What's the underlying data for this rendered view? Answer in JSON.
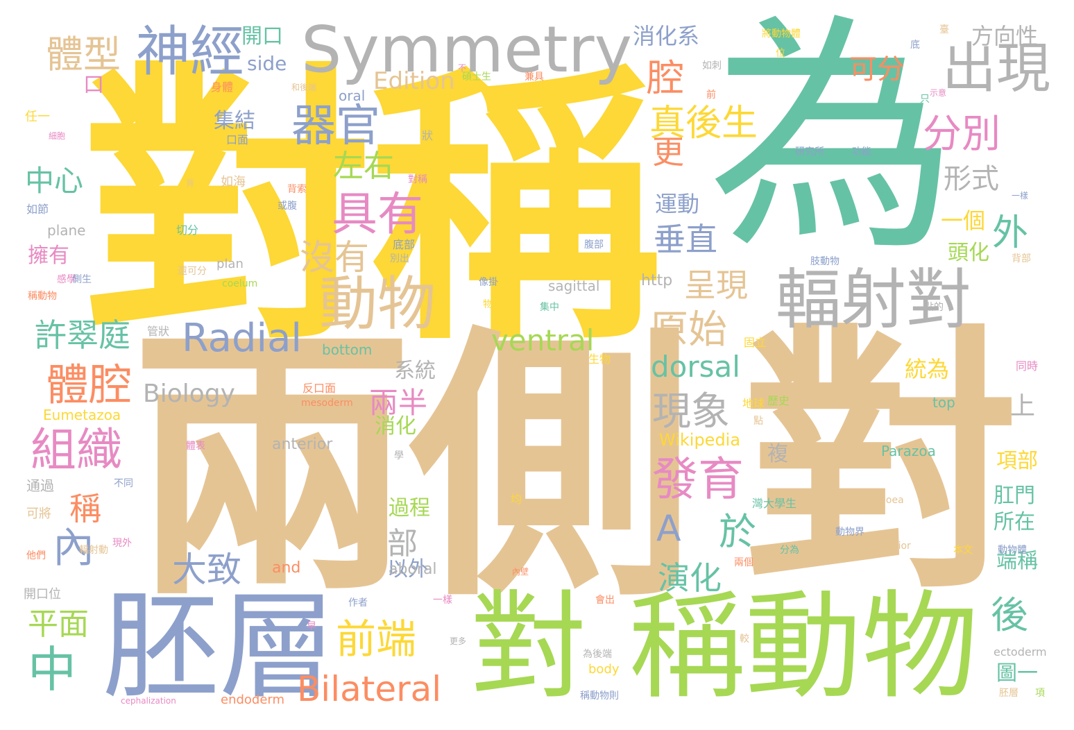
{
  "words": [
    {
      "id": "w-dui-cheng",
      "text": "對稱",
      "color": "#fdd836"
    },
    {
      "id": "w-wei",
      "text": "為",
      "color": "#66c2a5"
    },
    {
      "id": "w-liang-ce",
      "text": "兩側",
      "color": "#e5c494"
    },
    {
      "id": "w-dui-big",
      "text": "對",
      "color": "#e5c494"
    },
    {
      "id": "w-pei-ceng",
      "text": "胚層",
      "color": "#8da0cb"
    },
    {
      "id": "w-dui-green",
      "text": "對",
      "color": "#a6d854"
    },
    {
      "id": "w-cheng-dongwu",
      "text": "稱動物",
      "color": "#a6d854"
    },
    {
      "id": "w-symmetry",
      "text": "Symmetry",
      "color": "#b3b3b3"
    },
    {
      "id": "w-shen-jing",
      "text": "神經",
      "color": "#8da0cb"
    },
    {
      "id": "w-chu-xian",
      "text": "出現",
      "color": "#b3b3b3"
    },
    {
      "id": "w-fu-she-dui",
      "text": "輻射對",
      "color": "#b3b3b3"
    },
    {
      "id": "w-dong-wu",
      "text": "動物",
      "color": "#e5c494"
    },
    {
      "id": "w-ju-you",
      "text": "具有",
      "color": "#e78ac3"
    },
    {
      "id": "w-qi-guan",
      "text": "器官",
      "color": "#8da0cb"
    },
    {
      "id": "w-radial",
      "text": "Radial",
      "color": "#8da0cb"
    },
    {
      "id": "w-ventral",
      "text": "ventral",
      "color": "#a6d854"
    },
    {
      "id": "w-dorsal",
      "text": "dorsal",
      "color": "#66c2a5"
    },
    {
      "id": "w-bilateral",
      "text": "Bilateral",
      "color": "#fc8d62"
    },
    {
      "id": "w-fa-yu",
      "text": "發育",
      "color": "#e78ac3"
    },
    {
      "id": "w-zu-zhi",
      "text": "組織",
      "color": "#e78ac3"
    },
    {
      "id": "w-ti-qiang",
      "text": "體腔",
      "color": "#fc8d62"
    },
    {
      "id": "w-qian-duan",
      "text": "前端",
      "color": "#fdd836"
    },
    {
      "id": "w-zhong",
      "text": "中",
      "color": "#66c2a5"
    },
    {
      "id": "w-nei",
      "text": "內",
      "color": "#8da0cb"
    },
    {
      "id": "w-ti-xing",
      "text": "體型",
      "color": "#e5c494"
    },
    {
      "id": "w-xian-xiang",
      "text": "現象",
      "color": "#b3b3b3"
    },
    {
      "id": "w-yuan-shi",
      "text": "原始",
      "color": "#e5c494"
    },
    {
      "id": "w-fen-bie",
      "text": "分別",
      "color": "#e78ac3"
    },
    {
      "id": "w-qiang",
      "text": "腔",
      "color": "#fc8d62"
    },
    {
      "id": "w-zhen-hou-sheng",
      "text": "真後生",
      "color": "#fdd836"
    },
    {
      "id": "w-mei-you",
      "text": "沒有",
      "color": "#e5c494"
    },
    {
      "id": "w-zuo-you",
      "text": "左右",
      "color": "#a6d854"
    },
    {
      "id": "w-xu-cui-ting",
      "text": "許翠庭",
      "color": "#66c2a5"
    },
    {
      "id": "w-da-zhi",
      "text": "大致",
      "color": "#8da0cb"
    },
    {
      "id": "w-A",
      "text": "A",
      "color": "#8da0cb"
    },
    {
      "id": "w-yu",
      "text": "於",
      "color": "#66c2a5"
    },
    {
      "id": "w-hou",
      "text": "後",
      "color": "#66c2a5"
    },
    {
      "id": "w-wai",
      "text": "外",
      "color": "#66c2a5"
    },
    {
      "id": "w-yan-hua",
      "text": "演化",
      "color": "#66c2a5"
    },
    {
      "id": "w-zhong-xin",
      "text": "中心",
      "color": "#66c2a5"
    },
    {
      "id": "w-ping-mian",
      "text": "平面",
      "color": "#a6d854"
    },
    {
      "id": "w-cheng",
      "text": "稱",
      "color": "#fc8d62"
    },
    {
      "id": "w-geng",
      "text": "更",
      "color": "#fc8d62"
    },
    {
      "id": "w-chui-zhi",
      "text": "垂直",
      "color": "#8da0cb"
    },
    {
      "id": "w-cheng-xian",
      "text": "呈現",
      "color": "#e5c494"
    },
    {
      "id": "w-liang-ban",
      "text": "兩半",
      "color": "#e78ac3"
    },
    {
      "id": "w-bu",
      "text": "部",
      "color": "#b3b3b3"
    },
    {
      "id": "w-ke-fen",
      "text": "可分",
      "color": "#fc8d62"
    },
    {
      "id": "w-xing-shi",
      "text": "形式",
      "color": "#b3b3b3"
    },
    {
      "id": "w-fang-xiang-xing",
      "text": "方向性",
      "color": "#b3b3b3"
    },
    {
      "id": "w-xiao-hua-xi",
      "text": "消化系",
      "color": "#8da0cb"
    },
    {
      "id": "w-ji-jie",
      "text": "集結",
      "color": "#8da0cb"
    },
    {
      "id": "w-yun-dong",
      "text": "運動",
      "color": "#8da0cb"
    },
    {
      "id": "w-yi-ge",
      "text": "一個",
      "color": "#fdd836"
    },
    {
      "id": "w-tou-hua",
      "text": "頭化",
      "color": "#a6d854"
    },
    {
      "id": "w-tong-wei",
      "text": "統為",
      "color": "#fdd836"
    },
    {
      "id": "w-shang",
      "text": "上",
      "color": "#b3b3b3"
    },
    {
      "id": "w-xi-tong",
      "text": "系統",
      "color": "#b3b3b3"
    },
    {
      "id": "w-biology",
      "text": "Biology",
      "color": "#b3b3b3"
    },
    {
      "id": "w-edition",
      "text": "Edition",
      "color": "#e5c494"
    },
    {
      "id": "w-kai-kou",
      "text": "開口",
      "color": "#66c2a5"
    },
    {
      "id": "w-side",
      "text": "side",
      "color": "#8da0cb"
    },
    {
      "id": "w-kou",
      "text": "口",
      "color": "#e78ac3"
    },
    {
      "id": "w-yong-you",
      "text": "擁有",
      "color": "#e78ac3"
    },
    {
      "id": "w-xiao-hua",
      "text": "消化",
      "color": "#a6d854"
    },
    {
      "id": "w-guo-cheng",
      "text": "過程",
      "color": "#a6d854"
    },
    {
      "id": "w-yi-wai",
      "text": "以外",
      "color": "#8da0cb"
    },
    {
      "id": "w-xiang-bu",
      "text": "項部",
      "color": "#fdd836"
    },
    {
      "id": "w-gang-men",
      "text": "肛門",
      "color": "#66c2a5"
    },
    {
      "id": "w-suo-zai",
      "text": "所在",
      "color": "#66c2a5"
    },
    {
      "id": "w-duan-cheng",
      "text": "端稱",
      "color": "#66c2a5"
    },
    {
      "id": "w-tu-yi",
      "text": "圖一",
      "color": "#66c2a5"
    },
    {
      "id": "w-fu",
      "text": "複",
      "color": "#b3b3b3"
    },
    {
      "id": "w-http",
      "text": "http",
      "color": "#b3b3b3"
    },
    {
      "id": "w-wikipedia",
      "text": "Wikipedia",
      "color": "#fdd836"
    },
    {
      "id": "w-eumetazoa",
      "text": "Eumetazoa",
      "color": "#fdd836"
    },
    {
      "id": "w-parazoa",
      "text": "Parazoa",
      "color": "#66c2a5"
    },
    {
      "id": "w-anterior",
      "text": "anterior",
      "color": "#b3b3b3"
    },
    {
      "id": "w-aboral",
      "text": "aboral",
      "color": "#b3b3b3"
    },
    {
      "id": "w-and",
      "text": "and",
      "color": "#fc8d62"
    },
    {
      "id": "w-bottom",
      "text": "bottom",
      "color": "#66c2a5"
    },
    {
      "id": "w-sagittal",
      "text": "sagittal",
      "color": "#b3b3b3"
    },
    {
      "id": "w-oral",
      "text": "oral",
      "color": "#8da0cb"
    },
    {
      "id": "w-top",
      "text": "top",
      "color": "#66c2a5"
    },
    {
      "id": "w-plane",
      "text": "plane",
      "color": "#b3b3b3"
    },
    {
      "id": "w-plan",
      "text": "plan",
      "color": "#b3b3b3"
    },
    {
      "id": "w-coelum",
      "text": "coelum",
      "color": "#a6d854"
    },
    {
      "id": "w-body",
      "text": "body",
      "color": "#fdd836"
    },
    {
      "id": "w-endoderm",
      "text": "endoderm",
      "color": "#fc8d62"
    },
    {
      "id": "w-ectoderm",
      "text": "ectoderm",
      "color": "#b3b3b3"
    },
    {
      "id": "w-mesoderm",
      "text": "mesoderm",
      "color": "#fc8d62"
    },
    {
      "id": "w-mesogloea",
      "text": "mesogloea",
      "color": "#e5c494"
    },
    {
      "id": "w-posterior",
      "text": "posterior",
      "color": "#e5c494"
    },
    {
      "id": "w-cephalization",
      "text": "cephalization",
      "color": "#e78ac3"
    },
    {
      "id": "w-tong-guo",
      "text": "通過",
      "color": "#b3b3b3"
    },
    {
      "id": "w-ke-jiang",
      "text": "可將",
      "color": "#e5c494"
    },
    {
      "id": "w-kai-kou-wei",
      "text": "開口位",
      "color": "#b3b3b3"
    },
    {
      "id": "w-ren-yi",
      "text": "任一",
      "color": "#fdd836"
    },
    {
      "id": "w-ru-jie",
      "text": "如節",
      "color": "#8da0cb"
    },
    {
      "id": "w-ru-hai",
      "text": "如海",
      "color": "#e5c494"
    },
    {
      "id": "w-qie-fen",
      "text": "切分",
      "color": "#66c2a5"
    },
    {
      "id": "w-guan-zhuang",
      "text": "管狀",
      "color": "#b3b3b3"
    },
    {
      "id": "w-di-bu",
      "text": "底部",
      "color": "#8da0cb"
    },
    {
      "id": "w-bie-chu",
      "text": "別出",
      "color": "#b3b3b3"
    },
    {
      "id": "w-shen-ti",
      "text": "身體",
      "color": "#fc8d62"
    },
    {
      "id": "w-kou-mian",
      "text": "口面",
      "color": "#8da0cb"
    },
    {
      "id": "w-zhuang",
      "text": "狀",
      "color": "#b3b3b3"
    },
    {
      "id": "w-bei-suo",
      "text": "背索",
      "color": "#fc8d62"
    },
    {
      "id": "w-huo-fu",
      "text": "或腹",
      "color": "#8da0cb"
    },
    {
      "id": "w-dui-cheng-small",
      "text": "對稱",
      "color": "#e78ac3"
    },
    {
      "id": "w-sheng-wu",
      "text": "生物",
      "color": "#fdd836"
    },
    {
      "id": "w-fan-kou-mian",
      "text": "反口面",
      "color": "#fc8d62"
    },
    {
      "id": "w-gu-li",
      "text": "固立",
      "color": "#fdd836"
    },
    {
      "id": "w-di-qiu",
      "text": "地球",
      "color": "#fdd836"
    },
    {
      "id": "w-li-shi",
      "text": "歷史",
      "color": "#a6d854"
    },
    {
      "id": "w-tong-shi",
      "text": "同時",
      "color": "#e78ac3"
    },
    {
      "id": "w-tai-da",
      "text": "灣大學生",
      "color": "#66c2a5"
    },
    {
      "id": "w-dong-wu-jie",
      "text": "動物界",
      "color": "#8da0cb"
    },
    {
      "id": "w-fen-wei",
      "text": "分為",
      "color": "#66c2a5"
    },
    {
      "id": "w-ben-wen",
      "text": "本文",
      "color": "#fdd836"
    },
    {
      "id": "w-dong-wu-ti",
      "text": "動物體",
      "color": "#8da0cb"
    },
    {
      "id": "w-zhi-dong-wu",
      "text": "肢動物",
      "color": "#8da0cb"
    },
    {
      "id": "w-dian-de",
      "text": "點的",
      "color": "#b3b3b3"
    },
    {
      "id": "w-bei-bu",
      "text": "背部",
      "color": "#e5c494"
    },
    {
      "id": "w-yi-yang",
      "text": "一樣",
      "color": "#8da0cb"
    },
    {
      "id": "w-shi-yi",
      "text": "示意",
      "color": "#e78ac3"
    },
    {
      "id": "w-yan-jiu-suo",
      "text": "研究所",
      "color": "#8da0cb"
    },
    {
      "id": "w-gong-neng",
      "text": "功能",
      "color": "#8da0cb"
    },
    {
      "id": "w-jiang-dong-wu-ti",
      "text": "將動物體",
      "color": "#fdd836"
    },
    {
      "id": "w-shuo-shi-sheng",
      "text": "碩士生",
      "color": "#a6d854"
    },
    {
      "id": "w-jian-ju",
      "text": "兼具",
      "color": "#fc8d62"
    },
    {
      "id": "w-ru-ci",
      "text": "如刺",
      "color": "#b3b3b3"
    },
    {
      "id": "w-he-hou-duan",
      "text": "和後端",
      "color": "#e5c494"
    },
    {
      "id": "w-xi-bao",
      "text": "細胞",
      "color": "#e78ac3"
    },
    {
      "id": "w-gan-xue",
      "text": "感學",
      "color": "#e78ac3"
    },
    {
      "id": "w-ce-sheng",
      "text": "側生",
      "color": "#8da0cb"
    },
    {
      "id": "w-cheng-dong-wu",
      "text": "稱動物",
      "color": "#fc8d62"
    },
    {
      "id": "w-huan-ke-fen",
      "text": "還可分",
      "color": "#e5c494"
    },
    {
      "id": "w-wu-ti",
      "text": "物體",
      "color": "#fdd836"
    },
    {
      "id": "w-ji-zhong",
      "text": "集中",
      "color": "#66c2a5"
    },
    {
      "id": "w-xiang-gua",
      "text": "像掛",
      "color": "#8da0cb"
    },
    {
      "id": "w-fu-bu",
      "text": "腹部",
      "color": "#8da0cb"
    },
    {
      "id": "w-fu-she-dong",
      "text": "輻射動",
      "color": "#e5c494"
    },
    {
      "id": "w-xian-wai",
      "text": "現外",
      "color": "#e78ac3"
    },
    {
      "id": "w-ta-men",
      "text": "他們",
      "color": "#fc8d62"
    },
    {
      "id": "w-ti-biao",
      "text": "體表",
      "color": "#e78ac3"
    },
    {
      "id": "w-xue",
      "text": "學",
      "color": "#b3b3b3"
    },
    {
      "id": "w-liang-ge",
      "text": "兩個",
      "color": "#fc8d62"
    },
    {
      "id": "w-dian",
      "text": "點",
      "color": "#e5c494"
    },
    {
      "id": "w-jun",
      "text": "均",
      "color": "#fdd836"
    },
    {
      "id": "w-zuo-zhe",
      "text": "作者",
      "color": "#8da0cb"
    },
    {
      "id": "w-yi-yang-2",
      "text": "一樣",
      "color": "#e78ac3"
    },
    {
      "id": "w-wei-hou-duan",
      "text": "為後端",
      "color": "#b3b3b3"
    },
    {
      "id": "w-cheng-dong-wu-ze",
      "text": "稱動物則",
      "color": "#8da0cb"
    },
    {
      "id": "w-bu-tong",
      "text": "不同",
      "color": "#8da0cb"
    },
    {
      "id": "w-pei-ceng-small",
      "text": "胚層",
      "color": "#e5c494"
    },
    {
      "id": "w-xiang",
      "text": "項",
      "color": "#a6d854"
    },
    {
      "id": "w-zao",
      "text": "早",
      "color": "#e78ac3"
    },
    {
      "id": "w-jiao",
      "text": "較",
      "color": "#e5c494"
    },
    {
      "id": "w-geng-duo",
      "text": "更多",
      "color": "#b3b3b3"
    },
    {
      "id": "w-hui-chu",
      "text": "會出",
      "color": "#fc8d62"
    },
    {
      "id": "w-nei-bi",
      "text": "內壁",
      "color": "#fc8d62"
    },
    {
      "id": "w-qian",
      "text": "前",
      "color": "#fc8d62"
    },
    {
      "id": "w-di",
      "text": "底",
      "color": "#8da0cb"
    },
    {
      "id": "w-wei",
      "text": "位",
      "color": "#fdd836"
    },
    {
      "id": "w-zhi",
      "text": "只",
      "color": "#66c2a5"
    },
    {
      "id": "w-bu-2",
      "text": "不",
      "color": "#e78ac3"
    },
    {
      "id": "w-bei",
      "text": "背",
      "color": "#e5c494"
    },
    {
      "id": "w-xiang-mu",
      "text": "臺",
      "color": "#e5c494"
    }
  ]
}
